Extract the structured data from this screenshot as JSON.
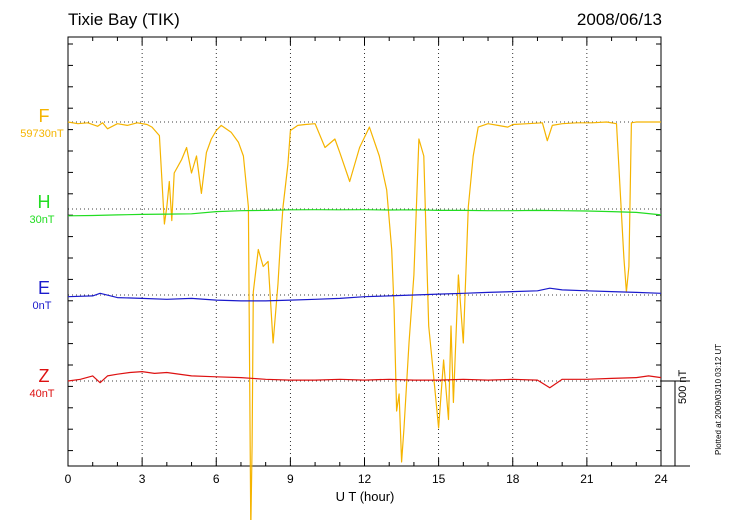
{
  "chart_data": {
    "type": "line",
    "title": "Tixie Bay (TIK)",
    "date": "2008/06/13",
    "xlabel": "U T (hour)",
    "xlim": [
      0,
      24
    ],
    "xticks": [
      0,
      3,
      6,
      9,
      12,
      15,
      18,
      21,
      24
    ],
    "scale_bar": "500 nT",
    "footer": "Plotted at 2009/03/10 03:12 UT",
    "channels": [
      {
        "name": "F",
        "baseline": "59730nT",
        "color": "#f5b400",
        "x": [
          0.0,
          0.4,
          0.8,
          1.2,
          1.4,
          1.6,
          2.0,
          2.4,
          2.8,
          3.2,
          3.4,
          3.7,
          3.9,
          4.0,
          4.1,
          4.2,
          4.3,
          4.6,
          4.8,
          5.0,
          5.2,
          5.4,
          5.6,
          5.8,
          6.0,
          6.2,
          6.6,
          6.9,
          7.1,
          7.3,
          7.4,
          7.45,
          7.5,
          7.7,
          7.9,
          8.1,
          8.3,
          8.5,
          8.6,
          8.7,
          8.9,
          9.0,
          9.3,
          9.6,
          10.0,
          10.4,
          10.8,
          11.0,
          11.4,
          11.8,
          12.2,
          12.6,
          12.9,
          13.1,
          13.2,
          13.3,
          13.4,
          13.5,
          13.6,
          13.8,
          14.0,
          14.2,
          14.4,
          14.6,
          14.8,
          15.0,
          15.2,
          15.4,
          15.5,
          15.6,
          15.8,
          16.0,
          16.2,
          16.4,
          16.6,
          17.0,
          17.4,
          17.8,
          18.0,
          18.6,
          19.2,
          19.4,
          19.6,
          20.0,
          20.6,
          21.2,
          21.8,
          22.2,
          22.5,
          22.6,
          22.7,
          22.8,
          23.0,
          23.5,
          24.0
        ],
        "y": [
          0,
          -10,
          -5,
          -25,
          -5,
          -40,
          -10,
          -20,
          -5,
          -15,
          -30,
          -80,
          -600,
          -500,
          -350,
          -580,
          -300,
          -220,
          -150,
          -300,
          -200,
          -420,
          -180,
          -100,
          -50,
          -20,
          -60,
          -120,
          -200,
          -500,
          -2400,
          -1900,
          -1000,
          -750,
          -850,
          -820,
          -1300,
          -950,
          -700,
          -500,
          -250,
          -50,
          -20,
          -15,
          -10,
          -150,
          -100,
          -180,
          -350,
          -150,
          -30,
          -200,
          -400,
          -750,
          -1100,
          -1700,
          -1600,
          -2000,
          -1800,
          -1300,
          -900,
          -100,
          -200,
          -1200,
          -1500,
          -1800,
          -1400,
          -1750,
          -1200,
          -1650,
          -900,
          -1300,
          -500,
          -200,
          -30,
          -10,
          -20,
          -30,
          -15,
          -10,
          -5,
          -110,
          -20,
          -10,
          -5,
          -5,
          0,
          -10,
          -800,
          -1000,
          -850,
          -5,
          0,
          0,
          0
        ]
      },
      {
        "name": "H",
        "baseline": "30nT",
        "color": "#22dd22",
        "x": [
          0,
          1,
          2,
          3,
          4,
          5,
          6,
          7,
          8,
          9,
          10,
          11,
          12,
          13,
          14,
          15,
          16,
          17,
          18,
          19,
          20,
          21,
          22,
          23,
          24
        ],
        "y": [
          -40,
          -38,
          -35,
          -32,
          -30,
          -28,
          -15,
          -10,
          -8,
          -5,
          -4,
          -5,
          -4,
          -6,
          -5,
          -8,
          -8,
          -10,
          -10,
          -8,
          -10,
          -12,
          -15,
          -20,
          -35
        ]
      },
      {
        "name": "E",
        "baseline": "0nT",
        "color": "#1a1acc",
        "x": [
          0,
          1,
          1.3,
          2,
          3,
          4,
          5,
          6,
          7,
          8,
          9,
          10,
          11,
          12,
          13,
          14,
          15,
          16,
          17,
          18,
          19,
          19.5,
          20,
          21,
          22,
          23,
          24
        ],
        "y": [
          -10,
          -5,
          10,
          -15,
          -20,
          -25,
          -20,
          -30,
          -35,
          -35,
          -30,
          -25,
          -20,
          -10,
          -5,
          0,
          5,
          10,
          15,
          20,
          25,
          40,
          30,
          25,
          20,
          15,
          10
        ]
      },
      {
        "name": "Z",
        "baseline": "40nT",
        "color": "#dd1111",
        "x": [
          0,
          0.5,
          1,
          1.3,
          1.6,
          2,
          2.5,
          3,
          3.5,
          4,
          5,
          6,
          7,
          8,
          9,
          10,
          11,
          12,
          13,
          14,
          15,
          16,
          17,
          18,
          19,
          19.5,
          20,
          21,
          22,
          23,
          23.5,
          24
        ],
        "y": [
          0,
          10,
          30,
          -10,
          30,
          40,
          50,
          55,
          45,
          50,
          30,
          25,
          20,
          10,
          5,
          5,
          10,
          5,
          10,
          5,
          5,
          10,
          5,
          10,
          5,
          -40,
          10,
          10,
          15,
          20,
          30,
          20
        ]
      }
    ]
  }
}
